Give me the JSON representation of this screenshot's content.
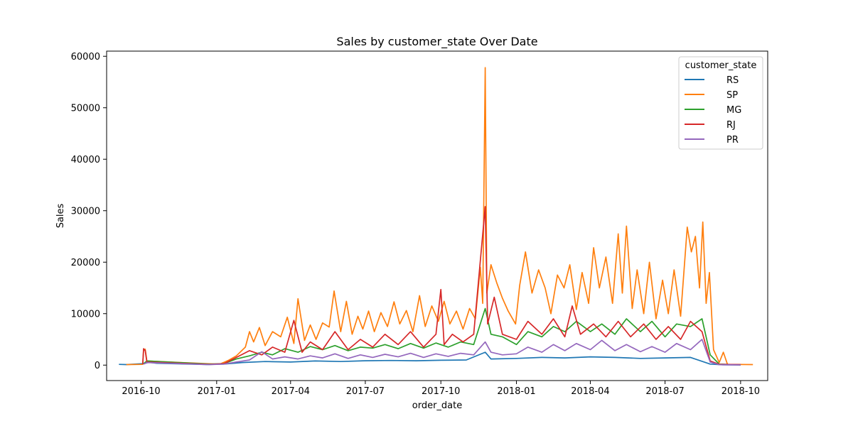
{
  "chart_data": {
    "type": "line",
    "title": "Sales by customer_state Over Date",
    "xlabel": "order_date",
    "ylabel": "Sales",
    "xlim": [
      "2016-08-20",
      "2018-11-03"
    ],
    "ylim": [
      -3000,
      61000
    ],
    "x_ticks": [
      "2016-10",
      "2017-01",
      "2017-04",
      "2017-07",
      "2017-10",
      "2018-01",
      "2018-04",
      "2018-07",
      "2018-10"
    ],
    "y_ticks": [
      0,
      10000,
      20000,
      30000,
      40000,
      50000,
      60000
    ],
    "grid": false,
    "legend": {
      "title": "customer_state",
      "placement": "top-right"
    },
    "series": [
      {
        "name": "RS",
        "color": "#1f77b4",
        "points": [
          [
            "2016-09-04",
            150
          ],
          [
            "2016-09-13",
            100
          ],
          [
            "2016-10-05",
            300
          ],
          [
            "2016-10-10",
            550
          ],
          [
            "2016-10-20",
            350
          ],
          [
            "2016-12-20",
            120
          ],
          [
            "2017-01-10",
            200
          ],
          [
            "2017-02-01",
            500
          ],
          [
            "2017-03-01",
            700
          ],
          [
            "2017-04-01",
            600
          ],
          [
            "2017-05-01",
            800
          ],
          [
            "2017-06-01",
            700
          ],
          [
            "2017-07-01",
            850
          ],
          [
            "2017-08-01",
            900
          ],
          [
            "2017-09-01",
            850
          ],
          [
            "2017-10-01",
            950
          ],
          [
            "2017-11-01",
            1000
          ],
          [
            "2017-11-24",
            2500
          ],
          [
            "2017-12-01",
            1200
          ],
          [
            "2018-01-01",
            1300
          ],
          [
            "2018-02-01",
            1500
          ],
          [
            "2018-03-01",
            1400
          ],
          [
            "2018-04-01",
            1600
          ],
          [
            "2018-05-01",
            1500
          ],
          [
            "2018-06-01",
            1300
          ],
          [
            "2018-07-01",
            1400
          ],
          [
            "2018-08-01",
            1500
          ],
          [
            "2018-08-25",
            200
          ],
          [
            "2018-09-10",
            60
          ],
          [
            "2018-10-01",
            30
          ]
        ]
      },
      {
        "name": "SP",
        "color": "#ff7f0e",
        "points": [
          [
            "2016-09-13",
            100
          ],
          [
            "2016-10-03",
            150
          ],
          [
            "2016-10-04",
            2900
          ],
          [
            "2016-10-06",
            3100
          ],
          [
            "2016-10-08",
            800
          ],
          [
            "2016-12-23",
            250
          ],
          [
            "2017-01-05",
            200
          ],
          [
            "2017-01-15",
            900
          ],
          [
            "2017-01-25",
            1800
          ],
          [
            "2017-02-05",
            3500
          ],
          [
            "2017-02-10",
            6500
          ],
          [
            "2017-02-15",
            4500
          ],
          [
            "2017-02-22",
            7300
          ],
          [
            "2017-03-01",
            3800
          ],
          [
            "2017-03-10",
            6500
          ],
          [
            "2017-03-20",
            5500
          ],
          [
            "2017-03-28",
            9300
          ],
          [
            "2017-04-05",
            4200
          ],
          [
            "2017-04-10",
            12900
          ],
          [
            "2017-04-18",
            4800
          ],
          [
            "2017-04-25",
            7800
          ],
          [
            "2017-05-02",
            5000
          ],
          [
            "2017-05-10",
            8200
          ],
          [
            "2017-05-18",
            7400
          ],
          [
            "2017-05-24",
            14400
          ],
          [
            "2017-06-01",
            6500
          ],
          [
            "2017-06-08",
            12400
          ],
          [
            "2017-06-15",
            6000
          ],
          [
            "2017-06-22",
            9500
          ],
          [
            "2017-06-28",
            7000
          ],
          [
            "2017-07-05",
            10500
          ],
          [
            "2017-07-12",
            6500
          ],
          [
            "2017-07-20",
            10200
          ],
          [
            "2017-07-28",
            7500
          ],
          [
            "2017-08-05",
            12300
          ],
          [
            "2017-08-12",
            8000
          ],
          [
            "2017-08-20",
            10600
          ],
          [
            "2017-08-28",
            6500
          ],
          [
            "2017-09-05",
            13500
          ],
          [
            "2017-09-12",
            7500
          ],
          [
            "2017-09-20",
            11500
          ],
          [
            "2017-09-28",
            8500
          ],
          [
            "2017-10-05",
            12400
          ],
          [
            "2017-10-12",
            8000
          ],
          [
            "2017-10-20",
            10500
          ],
          [
            "2017-10-28",
            7000
          ],
          [
            "2017-11-05",
            11000
          ],
          [
            "2017-11-12",
            9000
          ],
          [
            "2017-11-18",
            19000
          ],
          [
            "2017-11-21",
            12000
          ],
          [
            "2017-11-24",
            57800
          ],
          [
            "2017-11-26",
            14000
          ],
          [
            "2017-12-01",
            19500
          ],
          [
            "2017-12-08",
            16000
          ],
          [
            "2017-12-15",
            13000
          ],
          [
            "2017-12-22",
            10500
          ],
          [
            "2017-12-31",
            8000
          ],
          [
            "2018-01-05",
            15500
          ],
          [
            "2018-01-12",
            22000
          ],
          [
            "2018-01-20",
            14000
          ],
          [
            "2018-01-28",
            18500
          ],
          [
            "2018-02-05",
            15000
          ],
          [
            "2018-02-12",
            10000
          ],
          [
            "2018-02-20",
            17500
          ],
          [
            "2018-02-28",
            15000
          ],
          [
            "2018-03-07",
            19500
          ],
          [
            "2018-03-15",
            10800
          ],
          [
            "2018-03-22",
            18000
          ],
          [
            "2018-03-30",
            12000
          ],
          [
            "2018-04-05",
            22800
          ],
          [
            "2018-04-12",
            15000
          ],
          [
            "2018-04-20",
            21000
          ],
          [
            "2018-04-28",
            12000
          ],
          [
            "2018-05-05",
            25500
          ],
          [
            "2018-05-10",
            14000
          ],
          [
            "2018-05-15",
            27000
          ],
          [
            "2018-05-22",
            11000
          ],
          [
            "2018-05-28",
            18500
          ],
          [
            "2018-06-05",
            10000
          ],
          [
            "2018-06-12",
            20000
          ],
          [
            "2018-06-20",
            9000
          ],
          [
            "2018-06-28",
            16500
          ],
          [
            "2018-07-05",
            10000
          ],
          [
            "2018-07-12",
            18500
          ],
          [
            "2018-07-20",
            9500
          ],
          [
            "2018-07-28",
            26800
          ],
          [
            "2018-08-02",
            22000
          ],
          [
            "2018-08-07",
            25000
          ],
          [
            "2018-08-12",
            15000
          ],
          [
            "2018-08-16",
            27800
          ],
          [
            "2018-08-20",
            12000
          ],
          [
            "2018-08-24",
            18000
          ],
          [
            "2018-08-29",
            3000
          ],
          [
            "2018-09-05",
            500
          ],
          [
            "2018-09-10",
            2500
          ],
          [
            "2018-09-15",
            150
          ],
          [
            "2018-10-16",
            100
          ]
        ]
      },
      {
        "name": "MG",
        "color": "#2ca02c",
        "points": [
          [
            "2016-10-04",
            300
          ],
          [
            "2016-10-08",
            800
          ],
          [
            "2016-12-23",
            200
          ],
          [
            "2017-01-10",
            300
          ],
          [
            "2017-01-25",
            1200
          ],
          [
            "2017-02-10",
            1800
          ],
          [
            "2017-02-25",
            2500
          ],
          [
            "2017-03-10",
            2000
          ],
          [
            "2017-03-25",
            3200
          ],
          [
            "2017-04-10",
            2500
          ],
          [
            "2017-04-25",
            3600
          ],
          [
            "2017-05-10",
            3000
          ],
          [
            "2017-05-25",
            3800
          ],
          [
            "2017-06-10",
            2800
          ],
          [
            "2017-06-25",
            3500
          ],
          [
            "2017-07-10",
            3300
          ],
          [
            "2017-07-25",
            4000
          ],
          [
            "2017-08-10",
            3200
          ],
          [
            "2017-08-25",
            4200
          ],
          [
            "2017-09-10",
            3300
          ],
          [
            "2017-09-25",
            4300
          ],
          [
            "2017-10-10",
            3500
          ],
          [
            "2017-10-25",
            4500
          ],
          [
            "2017-11-10",
            4000
          ],
          [
            "2017-11-24",
            11000
          ],
          [
            "2017-12-01",
            6000
          ],
          [
            "2017-12-15",
            5500
          ],
          [
            "2018-01-01",
            4000
          ],
          [
            "2018-01-15",
            6500
          ],
          [
            "2018-02-01",
            5500
          ],
          [
            "2018-02-15",
            7500
          ],
          [
            "2018-03-01",
            6500
          ],
          [
            "2018-03-15",
            8500
          ],
          [
            "2018-04-01",
            6500
          ],
          [
            "2018-04-15",
            8000
          ],
          [
            "2018-05-01",
            6000
          ],
          [
            "2018-05-15",
            9000
          ],
          [
            "2018-06-01",
            6500
          ],
          [
            "2018-06-15",
            8500
          ],
          [
            "2018-07-01",
            5500
          ],
          [
            "2018-07-15",
            8000
          ],
          [
            "2018-08-01",
            7500
          ],
          [
            "2018-08-15",
            9000
          ],
          [
            "2018-08-25",
            2000
          ],
          [
            "2018-09-05",
            200
          ],
          [
            "2018-10-01",
            50
          ]
        ]
      },
      {
        "name": "RJ",
        "color": "#d62728",
        "points": [
          [
            "2016-10-03",
            200
          ],
          [
            "2016-10-04",
            3200
          ],
          [
            "2016-10-06",
            2800
          ],
          [
            "2016-10-08",
            600
          ],
          [
            "2016-12-23",
            150
          ],
          [
            "2017-01-10",
            300
          ],
          [
            "2017-01-25",
            1500
          ],
          [
            "2017-02-10",
            2800
          ],
          [
            "2017-02-25",
            2000
          ],
          [
            "2017-03-10",
            3500
          ],
          [
            "2017-03-25",
            2500
          ],
          [
            "2017-04-05",
            8700
          ],
          [
            "2017-04-15",
            2500
          ],
          [
            "2017-04-25",
            4500
          ],
          [
            "2017-05-10",
            3000
          ],
          [
            "2017-05-25",
            6500
          ],
          [
            "2017-06-10",
            3000
          ],
          [
            "2017-06-25",
            5000
          ],
          [
            "2017-07-10",
            3500
          ],
          [
            "2017-07-25",
            6000
          ],
          [
            "2017-08-10",
            4000
          ],
          [
            "2017-08-25",
            6500
          ],
          [
            "2017-09-10",
            3500
          ],
          [
            "2017-09-25",
            6000
          ],
          [
            "2017-10-01",
            14700
          ],
          [
            "2017-10-05",
            4000
          ],
          [
            "2017-10-15",
            6000
          ],
          [
            "2017-10-28",
            4500
          ],
          [
            "2017-11-10",
            6000
          ],
          [
            "2017-11-24",
            30800
          ],
          [
            "2017-11-27",
            8000
          ],
          [
            "2017-12-05",
            13200
          ],
          [
            "2017-12-15",
            6000
          ],
          [
            "2018-01-01",
            5000
          ],
          [
            "2018-01-15",
            8500
          ],
          [
            "2018-02-01",
            6000
          ],
          [
            "2018-02-15",
            9000
          ],
          [
            "2018-03-01",
            5500
          ],
          [
            "2018-03-10",
            11500
          ],
          [
            "2018-03-20",
            6000
          ],
          [
            "2018-04-05",
            8000
          ],
          [
            "2018-04-20",
            5500
          ],
          [
            "2018-05-05",
            8500
          ],
          [
            "2018-05-20",
            5500
          ],
          [
            "2018-06-05",
            8000
          ],
          [
            "2018-06-20",
            5000
          ],
          [
            "2018-07-05",
            7500
          ],
          [
            "2018-07-20",
            5000
          ],
          [
            "2018-08-01",
            8500
          ],
          [
            "2018-08-15",
            6500
          ],
          [
            "2018-08-25",
            800
          ],
          [
            "2018-09-05",
            150
          ],
          [
            "2018-10-01",
            100
          ]
        ]
      },
      {
        "name": "PR",
        "color": "#9467bd",
        "points": [
          [
            "2016-10-04",
            200
          ],
          [
            "2016-10-08",
            500
          ],
          [
            "2016-12-23",
            100
          ],
          [
            "2017-01-10",
            200
          ],
          [
            "2017-01-25",
            600
          ],
          [
            "2017-02-10",
            1000
          ],
          [
            "2017-02-25",
            2600
          ],
          [
            "2017-03-10",
            1200
          ],
          [
            "2017-03-25",
            1600
          ],
          [
            "2017-04-10",
            1200
          ],
          [
            "2017-04-25",
            1800
          ],
          [
            "2017-05-10",
            1400
          ],
          [
            "2017-05-25",
            2200
          ],
          [
            "2017-06-10",
            1300
          ],
          [
            "2017-06-25",
            2000
          ],
          [
            "2017-07-10",
            1500
          ],
          [
            "2017-07-25",
            2100
          ],
          [
            "2017-08-10",
            1600
          ],
          [
            "2017-08-25",
            2300
          ],
          [
            "2017-09-10",
            1500
          ],
          [
            "2017-09-25",
            2200
          ],
          [
            "2017-10-10",
            1700
          ],
          [
            "2017-10-25",
            2300
          ],
          [
            "2017-11-10",
            2000
          ],
          [
            "2017-11-24",
            4500
          ],
          [
            "2017-12-01",
            2500
          ],
          [
            "2017-12-15",
            2000
          ],
          [
            "2018-01-01",
            2200
          ],
          [
            "2018-01-15",
            3500
          ],
          [
            "2018-02-01",
            2500
          ],
          [
            "2018-02-15",
            4000
          ],
          [
            "2018-03-01",
            2800
          ],
          [
            "2018-03-15",
            4200
          ],
          [
            "2018-04-01",
            3000
          ],
          [
            "2018-04-15",
            4800
          ],
          [
            "2018-05-01",
            2800
          ],
          [
            "2018-05-15",
            4000
          ],
          [
            "2018-06-01",
            2600
          ],
          [
            "2018-06-15",
            3600
          ],
          [
            "2018-07-01",
            2500
          ],
          [
            "2018-07-15",
            4200
          ],
          [
            "2018-08-01",
            3000
          ],
          [
            "2018-08-15",
            5000
          ],
          [
            "2018-08-25",
            600
          ],
          [
            "2018-09-05",
            80
          ],
          [
            "2018-10-01",
            40
          ]
        ]
      }
    ]
  }
}
